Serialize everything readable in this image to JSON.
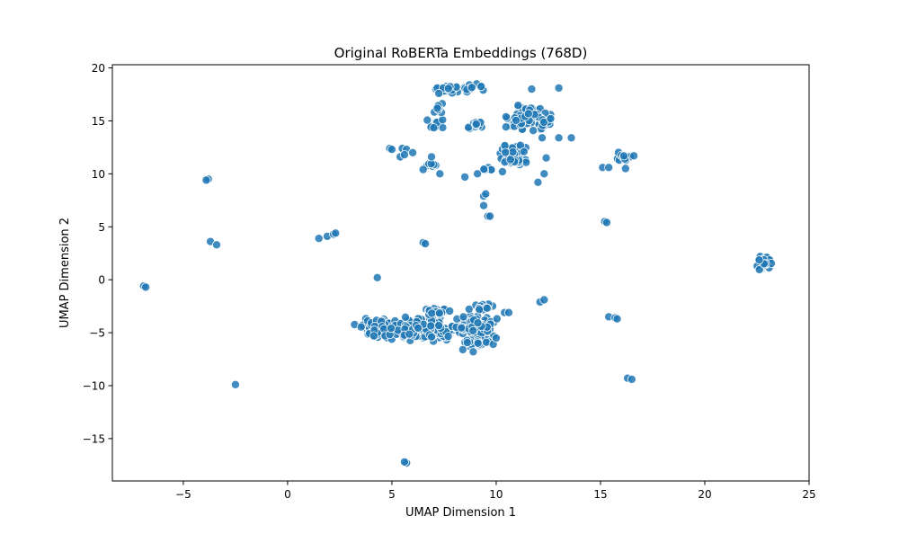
{
  "chart_data": {
    "type": "scatter",
    "title": "Original RoBERTa Embeddings (768D)",
    "xlabel": "UMAP Dimension 1",
    "ylabel": "UMAP Dimension 2",
    "xlim": [
      -8.4,
      25.0
    ],
    "ylim": [
      -19.0,
      20.3
    ],
    "xticks": [
      -5,
      0,
      5,
      10,
      15,
      20,
      25
    ],
    "yticks": [
      -15,
      -10,
      -5,
      0,
      5,
      10,
      15,
      20
    ],
    "grid": false,
    "legend": "none",
    "marker_color": "#1f77b4",
    "marker_edge_color": "#ffffff",
    "clusters": [
      {
        "center": [
          4.4,
          -4.6
        ],
        "spread": [
          0.9,
          0.8
        ],
        "count": 90
      },
      {
        "center": [
          6.6,
          -4.7
        ],
        "spread": [
          1.3,
          0.9
        ],
        "count": 170
      },
      {
        "center": [
          8.8,
          -4.4
        ],
        "spread": [
          1.0,
          0.9
        ],
        "count": 80
      },
      {
        "center": [
          9.1,
          -6.0
        ],
        "spread": [
          0.6,
          0.4
        ],
        "count": 25
      },
      {
        "center": [
          7.2,
          -3.0
        ],
        "spread": [
          0.7,
          0.3
        ],
        "count": 20
      },
      {
        "center": [
          9.4,
          -2.6
        ],
        "spread": [
          0.6,
          0.3
        ],
        "count": 15
      },
      {
        "center": [
          7.6,
          18.0
        ],
        "spread": [
          0.7,
          0.35
        ],
        "count": 30
      },
      {
        "center": [
          8.8,
          18.1
        ],
        "spread": [
          0.5,
          0.4
        ],
        "count": 12
      },
      {
        "center": [
          9.0,
          14.6
        ],
        "spread": [
          0.5,
          0.4
        ],
        "count": 15
      },
      {
        "center": [
          11.6,
          15.3
        ],
        "spread": [
          0.9,
          1.3
        ],
        "count": 70
      },
      {
        "center": [
          10.9,
          11.8
        ],
        "spread": [
          0.7,
          1.2
        ],
        "count": 60
      },
      {
        "center": [
          7.1,
          14.6
        ],
        "spread": [
          0.4,
          0.6
        ],
        "count": 12
      },
      {
        "center": [
          7.0,
          10.8
        ],
        "spread": [
          0.4,
          0.2
        ],
        "count": 8
      },
      {
        "center": [
          9.6,
          10.3
        ],
        "spread": [
          0.4,
          0.3
        ],
        "count": 6
      },
      {
        "center": [
          16.1,
          11.6
        ],
        "spread": [
          0.35,
          0.5
        ],
        "count": 12
      },
      {
        "center": [
          22.8,
          1.6
        ],
        "spread": [
          0.3,
          0.7
        ],
        "count": 40
      },
      {
        "center": [
          7.2,
          16.2
        ],
        "spread": [
          0.3,
          0.5
        ],
        "count": 8
      }
    ],
    "points": [
      [
        -6.9,
        -0.6
      ],
      [
        -6.8,
        -0.7
      ],
      [
        -3.8,
        9.5
      ],
      [
        -3.9,
        9.4
      ],
      [
        -3.7,
        3.6
      ],
      [
        -3.4,
        3.3
      ],
      [
        -2.5,
        -9.9
      ],
      [
        1.5,
        3.9
      ],
      [
        1.9,
        4.1
      ],
      [
        2.2,
        4.3
      ],
      [
        2.3,
        4.4
      ],
      [
        4.3,
        0.2
      ],
      [
        5.7,
        -17.3
      ],
      [
        5.6,
        -17.2
      ],
      [
        4.9,
        12.4
      ],
      [
        5.0,
        12.3
      ],
      [
        5.5,
        12.4
      ],
      [
        5.7,
        12.3
      ],
      [
        5.4,
        11.6
      ],
      [
        5.6,
        11.8
      ],
      [
        6.0,
        12.0
      ],
      [
        6.5,
        3.5
      ],
      [
        6.6,
        3.4
      ],
      [
        9.4,
        7.9
      ],
      [
        9.5,
        8.1
      ],
      [
        9.4,
        7.0
      ],
      [
        9.6,
        6.0
      ],
      [
        9.7,
        6.0
      ],
      [
        8.5,
        9.7
      ],
      [
        9.1,
        10.0
      ],
      [
        10.3,
        10.2
      ],
      [
        12.3,
        10.0
      ],
      [
        12.0,
        9.2
      ],
      [
        12.4,
        11.5
      ],
      [
        12.2,
        13.4
      ],
      [
        13.0,
        13.4
      ],
      [
        13.6,
        13.4
      ],
      [
        13.0,
        18.1
      ],
      [
        11.7,
        18.0
      ],
      [
        15.1,
        10.6
      ],
      [
        15.4,
        10.6
      ],
      [
        15.2,
        5.5
      ],
      [
        15.3,
        5.4
      ],
      [
        12.1,
        -2.1
      ],
      [
        12.3,
        -1.9
      ],
      [
        15.4,
        -3.5
      ],
      [
        15.7,
        -3.6
      ],
      [
        15.8,
        -3.7
      ],
      [
        16.3,
        -9.3
      ],
      [
        16.5,
        -9.4
      ],
      [
        10.4,
        -3.1
      ],
      [
        10.6,
        -3.1
      ],
      [
        8.4,
        -6.6
      ],
      [
        8.9,
        -6.8
      ],
      [
        10.0,
        -5.5
      ],
      [
        6.9,
        11.6
      ],
      [
        6.5,
        10.4
      ],
      [
        7.3,
        10.0
      ],
      [
        16.2,
        10.5
      ],
      [
        16.6,
        11.7
      ]
    ]
  }
}
